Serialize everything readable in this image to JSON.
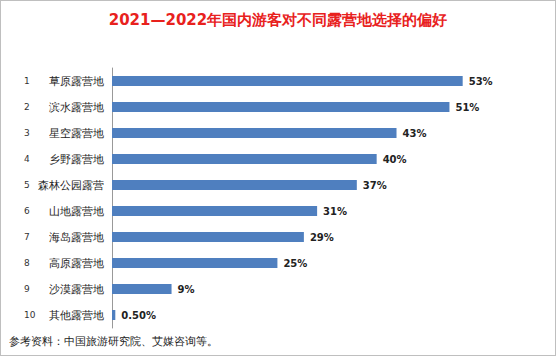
{
  "chart_data": {
    "type": "bar",
    "title": "2021—2022年国内游客对不同露营地选择的偏好",
    "categories": [
      "草原露营地",
      "滨水露营地",
      "星空露营地",
      "乡野露营地",
      "森林公园露营",
      "山地露营地",
      "海岛露营地",
      "高原露营地",
      "沙漠露营地",
      "其他露营地"
    ],
    "ranks": [
      "1",
      "2",
      "3",
      "4",
      "5",
      "6",
      "7",
      "8",
      "9",
      "10"
    ],
    "values": [
      53,
      51,
      43,
      40,
      37,
      31,
      29,
      25,
      9,
      0.5
    ],
    "value_labels": [
      "53%",
      "51%",
      "43%",
      "40%",
      "37%",
      "31%",
      "29%",
      "25%",
      "9%",
      "0.50%"
    ],
    "color": "#4f7fbf",
    "orientation": "horizontal",
    "xlim": [
      0,
      60
    ],
    "xticks": [
      0,
      60
    ],
    "grid": false,
    "data_labels": true,
    "tick_labels": "y",
    "note": "参考资料：中国旅游研究院、艾媒咨询等。"
  }
}
